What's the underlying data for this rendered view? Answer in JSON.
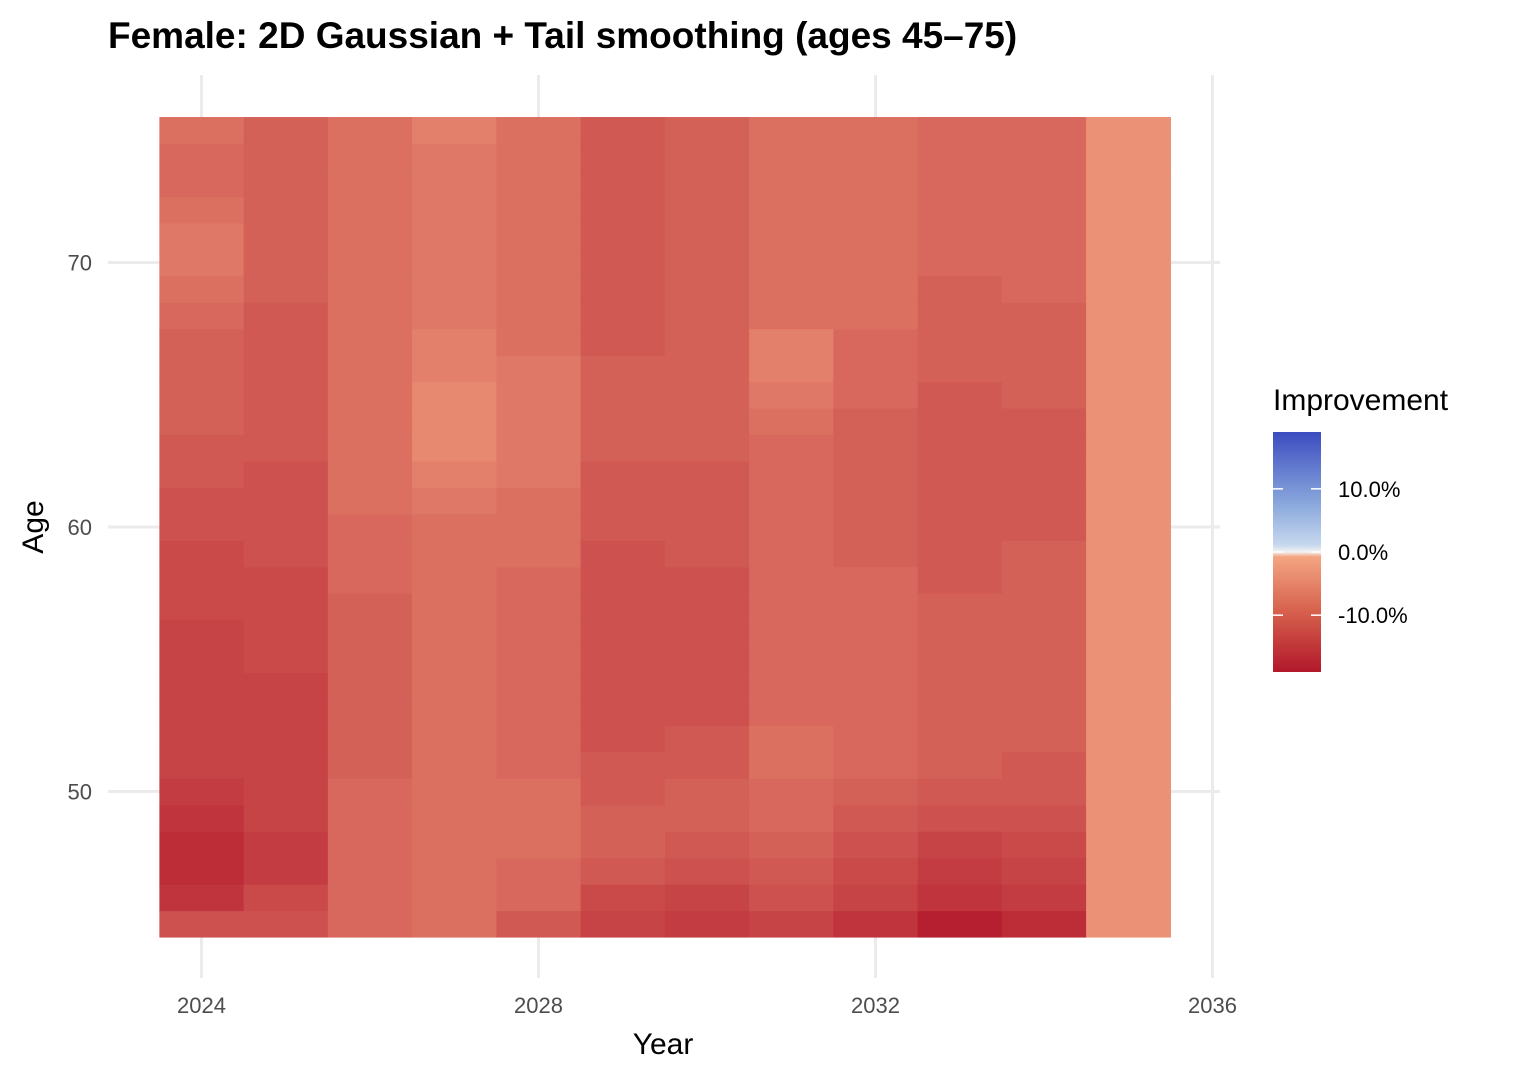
{
  "chart_data": {
    "type": "heatmap",
    "title": "Female: 2D Gaussian + Tail smoothing (ages 45–75)",
    "xlabel": "Year",
    "ylabel": "Age",
    "x_ticks": [
      2024,
      2028,
      2032,
      2036
    ],
    "y_ticks": [
      50,
      60,
      70
    ],
    "xlim": [
      2023.5,
      2036
    ],
    "ylim": [
      44.5,
      75.5
    ],
    "grid": true,
    "legend": {
      "title": "Improvement",
      "placement": "right",
      "labels": [
        {
          "label": "10.0%",
          "value": 0.1
        },
        {
          "label": "0.0%",
          "value": 0.0
        },
        {
          "label": "-10.0%",
          "value": -0.1
        }
      ],
      "limits": [
        -0.19,
        0.19
      ],
      "colors": {
        "low": "#b2182b",
        "mid": "#f7f7f7",
        "high": "#3b4cc0",
        "mid_low": "#f4a582",
        "mid_high": "#92c5de"
      }
    },
    "years": [
      2024,
      2025,
      2026,
      2027,
      2028,
      2029,
      2030,
      2031,
      2032,
      2033,
      2034,
      2035
    ],
    "ages_start": 45,
    "ages_end": 75,
    "values_by_year": [
      [
        -0.11,
        -0.15,
        -0.16,
        -0.16,
        -0.15,
        -0.14,
        -0.13,
        -0.13,
        -0.13,
        -0.13,
        -0.13,
        -0.13,
        -0.12,
        -0.12,
        -0.12,
        -0.11,
        -0.11,
        -0.1,
        -0.1,
        -0.09,
        -0.09,
        -0.09,
        -0.09,
        -0.08,
        -0.07,
        -0.06,
        -0.06,
        -0.07,
        -0.08,
        -0.08,
        -0.07
      ],
      [
        -0.11,
        -0.12,
        -0.14,
        -0.14,
        -0.13,
        -0.13,
        -0.13,
        -0.13,
        -0.13,
        -0.13,
        -0.12,
        -0.12,
        -0.12,
        -0.12,
        -0.11,
        -0.11,
        -0.11,
        -0.11,
        -0.1,
        -0.1,
        -0.1,
        -0.1,
        -0.1,
        -0.1,
        -0.09,
        -0.09,
        -0.09,
        -0.09,
        -0.09,
        -0.09,
        -0.09
      ],
      [
        -0.08,
        -0.08,
        -0.08,
        -0.08,
        -0.08,
        -0.08,
        -0.09,
        -0.09,
        -0.09,
        -0.09,
        -0.09,
        -0.09,
        -0.09,
        -0.08,
        -0.08,
        -0.08,
        -0.07,
        -0.07,
        -0.07,
        -0.07,
        -0.07,
        -0.07,
        -0.07,
        -0.07,
        -0.07,
        -0.07,
        -0.07,
        -0.07,
        -0.07,
        -0.07,
        -0.07
      ],
      [
        -0.07,
        -0.07,
        -0.07,
        -0.07,
        -0.07,
        -0.07,
        -0.07,
        -0.07,
        -0.07,
        -0.07,
        -0.07,
        -0.07,
        -0.07,
        -0.07,
        -0.07,
        -0.07,
        -0.06,
        -0.05,
        -0.04,
        -0.04,
        -0.04,
        -0.05,
        -0.05,
        -0.06,
        -0.06,
        -0.06,
        -0.06,
        -0.06,
        -0.06,
        -0.06,
        -0.05
      ],
      [
        -0.1,
        -0.08,
        -0.08,
        -0.07,
        -0.07,
        -0.07,
        -0.08,
        -0.08,
        -0.08,
        -0.08,
        -0.08,
        -0.08,
        -0.08,
        -0.08,
        -0.07,
        -0.07,
        -0.07,
        -0.06,
        -0.06,
        -0.06,
        -0.06,
        -0.06,
        -0.07,
        -0.07,
        -0.07,
        -0.07,
        -0.07,
        -0.07,
        -0.07,
        -0.07,
        -0.07
      ],
      [
        -0.13,
        -0.12,
        -0.1,
        -0.09,
        -0.09,
        -0.1,
        -0.1,
        -0.11,
        -0.11,
        -0.11,
        -0.11,
        -0.11,
        -0.11,
        -0.11,
        -0.11,
        -0.1,
        -0.1,
        -0.1,
        -0.09,
        -0.09,
        -0.09,
        -0.09,
        -0.1,
        -0.1,
        -0.1,
        -0.1,
        -0.1,
        -0.1,
        -0.1,
        -0.1,
        -0.1
      ],
      [
        -0.14,
        -0.13,
        -0.11,
        -0.1,
        -0.09,
        -0.09,
        -0.1,
        -0.1,
        -0.11,
        -0.11,
        -0.11,
        -0.11,
        -0.11,
        -0.11,
        -0.1,
        -0.1,
        -0.1,
        -0.1,
        -0.09,
        -0.09,
        -0.09,
        -0.09,
        -0.09,
        -0.09,
        -0.09,
        -0.09,
        -0.09,
        -0.09,
        -0.09,
        -0.09,
        -0.09
      ],
      [
        -0.13,
        -0.11,
        -0.1,
        -0.09,
        -0.08,
        -0.08,
        -0.07,
        -0.07,
        -0.08,
        -0.08,
        -0.08,
        -0.08,
        -0.08,
        -0.08,
        -0.08,
        -0.08,
        -0.08,
        -0.08,
        -0.08,
        -0.07,
        -0.06,
        -0.05,
        -0.05,
        -0.07,
        -0.07,
        -0.07,
        -0.07,
        -0.07,
        -0.07,
        -0.07,
        -0.07
      ],
      [
        -0.15,
        -0.13,
        -0.12,
        -0.11,
        -0.1,
        -0.09,
        -0.08,
        -0.08,
        -0.08,
        -0.08,
        -0.08,
        -0.08,
        -0.08,
        -0.08,
        -0.09,
        -0.09,
        -0.09,
        -0.09,
        -0.09,
        -0.09,
        -0.08,
        -0.08,
        -0.08,
        -0.07,
        -0.07,
        -0.07,
        -0.07,
        -0.07,
        -0.07,
        -0.07,
        -0.07
      ],
      [
        -0.18,
        -0.15,
        -0.14,
        -0.13,
        -0.11,
        -0.1,
        -0.09,
        -0.09,
        -0.09,
        -0.09,
        -0.09,
        -0.09,
        -0.09,
        -0.1,
        -0.1,
        -0.1,
        -0.1,
        -0.1,
        -0.1,
        -0.1,
        -0.1,
        -0.09,
        -0.09,
        -0.09,
        -0.09,
        -0.08,
        -0.08,
        -0.08,
        -0.08,
        -0.08,
        -0.08
      ],
      [
        -0.16,
        -0.14,
        -0.13,
        -0.12,
        -0.11,
        -0.1,
        -0.1,
        -0.09,
        -0.09,
        -0.09,
        -0.09,
        -0.09,
        -0.09,
        -0.09,
        -0.09,
        -0.1,
        -0.1,
        -0.1,
        -0.1,
        -0.1,
        -0.09,
        -0.09,
        -0.09,
        -0.09,
        -0.08,
        -0.08,
        -0.08,
        -0.08,
        -0.08,
        -0.08,
        -0.08
      ],
      [
        -0.03,
        -0.03,
        -0.03,
        -0.03,
        -0.03,
        -0.03,
        -0.03,
        -0.03,
        -0.03,
        -0.03,
        -0.03,
        -0.03,
        -0.03,
        -0.03,
        -0.03,
        -0.03,
        -0.03,
        -0.03,
        -0.03,
        -0.03,
        -0.03,
        -0.03,
        -0.03,
        -0.03,
        -0.03,
        -0.03,
        -0.03,
        -0.03,
        -0.03,
        -0.03,
        -0.03
      ]
    ]
  }
}
